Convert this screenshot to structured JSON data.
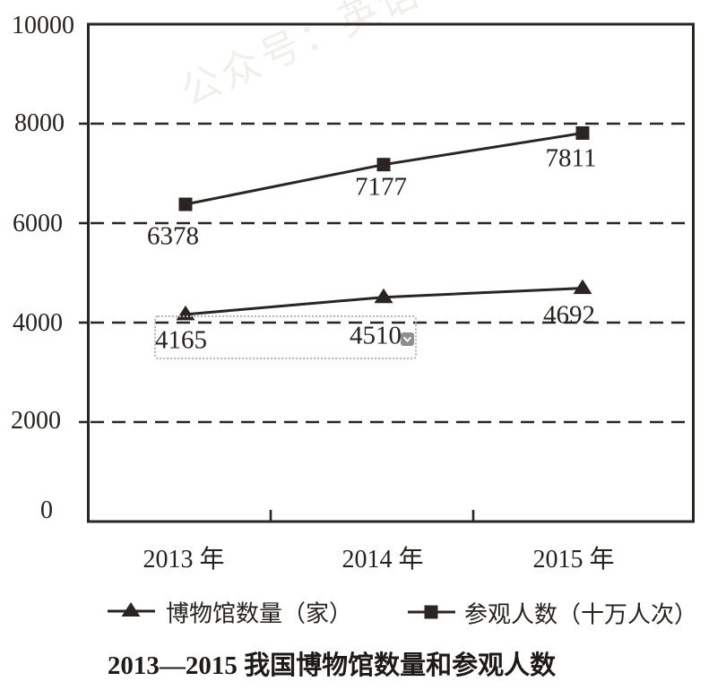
{
  "watermark": {
    "text": "公众号：英语"
  },
  "chart": {
    "y_axis_labels": [
      "10000",
      "8000",
      "6000",
      "4000",
      "2000",
      "0"
    ],
    "x_axis_labels": [
      "2013 年",
      "2014 年",
      "2015 年"
    ],
    "point_labels": {
      "visitors": [
        "6378",
        "7177",
        "7811"
      ],
      "museums": [
        "4165",
        "4510",
        "4692"
      ]
    }
  },
  "legend": {
    "museums": "博物馆数量（家）",
    "visitors": "参观人数（十万人次）"
  },
  "title": "2013—2015 我国博物馆数量和参观人数",
  "chart_data": {
    "type": "line",
    "categories": [
      "2013 年",
      "2014 年",
      "2015 年"
    ],
    "series": [
      {
        "name": "博物馆数量（家）",
        "marker": "triangle",
        "values": [
          4165,
          4510,
          4692
        ]
      },
      {
        "name": "参观人数（十万人次）",
        "marker": "square",
        "values": [
          6378,
          7177,
          7811
        ]
      }
    ],
    "title": "2013—2015 我国博物馆数量和参观人数",
    "xlabel": "",
    "ylabel": "",
    "ylim": [
      0,
      10000
    ],
    "y_ticks": [
      0,
      2000,
      4000,
      6000,
      8000,
      10000
    ],
    "grid": "horizontal-dashed",
    "legend_position": "bottom"
  },
  "colors": {
    "ink": "#2a2522",
    "watermark": "#f0efec",
    "selection_border": "#b3b3b3",
    "chevron_button_bg": "#8f8f8f"
  }
}
